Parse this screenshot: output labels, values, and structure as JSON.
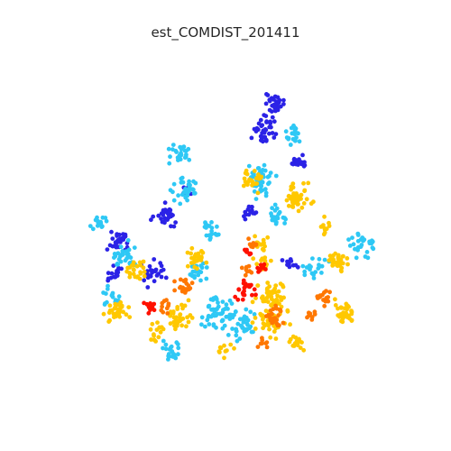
{
  "title": "est_COMDIST_201411",
  "map_data": {
    "type": "dot-map",
    "color_classes": [
      {
        "id": "class-1",
        "color": "#2b22e6"
      },
      {
        "id": "class-2",
        "color": "#2ec8f5"
      },
      {
        "id": "class-3",
        "color": "#ffc800"
      },
      {
        "id": "class-4",
        "color": "#ff7700"
      },
      {
        "id": "class-5",
        "color": "#ff1100"
      }
    ]
  }
}
